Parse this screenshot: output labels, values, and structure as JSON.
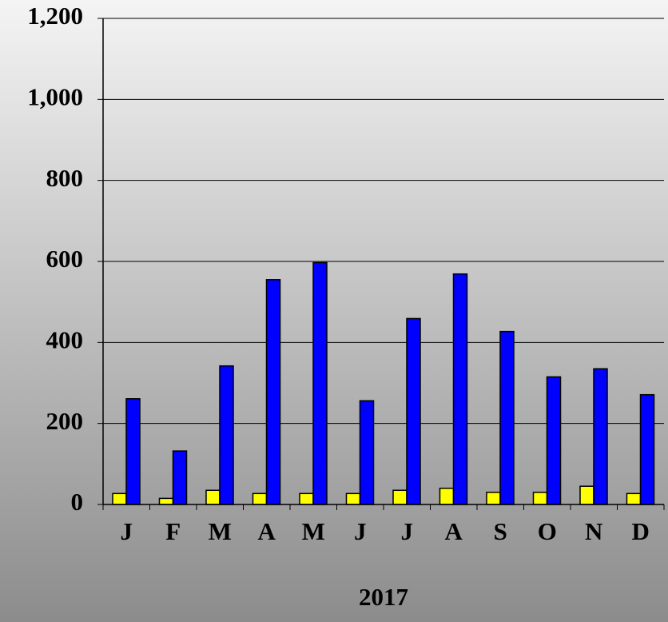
{
  "chart_data": {
    "type": "bar",
    "x_label": "2017",
    "categories": [
      "J",
      "F",
      "M",
      "A",
      "M",
      "J",
      "J",
      "A",
      "S",
      "O",
      "N",
      "D"
    ],
    "series": [
      {
        "color": "#ffff00",
        "values": [
          27,
          15,
          35,
          27,
          27,
          27,
          35,
          40,
          30,
          30,
          45,
          27
        ]
      },
      {
        "color": "#0000ff",
        "values": [
          261,
          132,
          342,
          555,
          597,
          256,
          459,
          569,
          427,
          315,
          335,
          271
        ]
      }
    ],
    "ylim": [
      0,
      1200
    ],
    "yticks": [
      0,
      200,
      400,
      600,
      800,
      {
        "value": 1000,
        "label": "1,000"
      },
      {
        "value": 1200,
        "label": "1,200"
      }
    ],
    "grid": true
  }
}
